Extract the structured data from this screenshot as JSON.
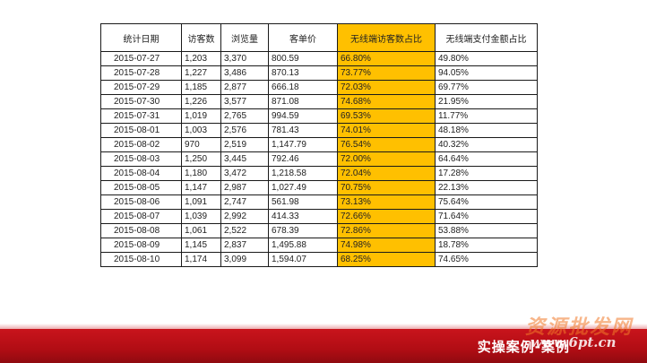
{
  "table": {
    "headers": [
      "统计日期",
      "访客数",
      "浏览量",
      "客单价",
      "无线端访客数占比",
      "无线端支付金额占比"
    ],
    "rows": [
      [
        "2015-07-27",
        "1,203",
        "3,370",
        "800.59",
        "66.80%",
        "49.80%"
      ],
      [
        "2015-07-28",
        "1,227",
        "3,486",
        "870.13",
        "73.77%",
        "94.05%"
      ],
      [
        "2015-07-29",
        "1,185",
        "2,877",
        "666.18",
        "72.03%",
        "69.77%"
      ],
      [
        "2015-07-30",
        "1,226",
        "3,577",
        "871.08",
        "74.68%",
        "21.95%"
      ],
      [
        "2015-07-31",
        "1,019",
        "2,765",
        "994.59",
        "69.53%",
        "11.77%"
      ],
      [
        "2015-08-01",
        "1,003",
        "2,576",
        "781.43",
        "74.01%",
        "48.18%"
      ],
      [
        "2015-08-02",
        "970",
        "2,519",
        "1,147.79",
        "76.54%",
        "40.32%"
      ],
      [
        "2015-08-03",
        "1,250",
        "3,445",
        "792.46",
        "72.00%",
        "64.64%"
      ],
      [
        "2015-08-04",
        "1,180",
        "3,472",
        "1,218.58",
        "72.04%",
        "17.28%"
      ],
      [
        "2015-08-05",
        "1,147",
        "2,987",
        "1,027.49",
        "70.75%",
        "22.13%"
      ],
      [
        "2015-08-06",
        "1,091",
        "2,747",
        "561.98",
        "73.13%",
        "75.64%"
      ],
      [
        "2015-08-07",
        "1,039",
        "2,992",
        "414.33",
        "72.66%",
        "71.64%"
      ],
      [
        "2015-08-08",
        "1,061",
        "2,522",
        "678.39",
        "72.86%",
        "53.88%"
      ],
      [
        "2015-08-09",
        "1,145",
        "2,837",
        "1,495.88",
        "74.98%",
        "18.78%"
      ],
      [
        "2015-08-10",
        "1,174",
        "3,099",
        "1,594.07",
        "68.25%",
        "74.65%"
      ]
    ]
  },
  "footer": {
    "title": "实操案例-案例"
  },
  "watermark": {
    "cn_text": "资源批发网",
    "url_text": "www.6pt.cn"
  },
  "colors": {
    "highlight": "#ffc000",
    "footer_red": "#b10d14"
  }
}
